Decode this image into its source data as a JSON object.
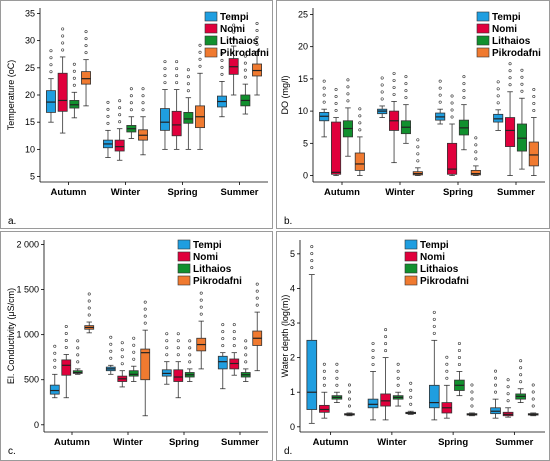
{
  "legend": [
    "Tempi",
    "Nomi",
    "Lithaios",
    "Pikrodafni"
  ],
  "colors": [
    "#1f9ee0",
    "#e0003c",
    "#11902e",
    "#f07a30"
  ],
  "chart_data": [
    {
      "type": "box",
      "panel_label": "a.",
      "ylabel": "Temperature (oC)",
      "categories": [
        "Autumn",
        "Winter",
        "Spring",
        "Summer"
      ],
      "ylim": [
        4,
        36
      ],
      "yticks": [
        "5",
        "10",
        "15",
        "20",
        "25",
        "30",
        "35"
      ],
      "ytick_values": [
        5,
        10,
        15,
        20,
        25,
        30,
        35
      ],
      "series": [
        {
          "name": "Tempi",
          "boxes": [
            {
              "min": 15,
              "q1": 16.8,
              "median": 18.7,
              "q3": 20.8,
              "max": 23
            },
            {
              "min": 8.5,
              "q1": 10.3,
              "median": 11,
              "q3": 11.7,
              "max": 13.5
            },
            {
              "min": 10,
              "q1": 13.5,
              "median": 15,
              "q3": 17.5,
              "max": 21
            },
            {
              "min": 16,
              "q1": 17.8,
              "median": 18.8,
              "q3": 19.8,
              "max": 22.5
            }
          ]
        },
        {
          "name": "Nomi",
          "boxes": [
            {
              "min": 13,
              "q1": 17,
              "median": 19,
              "q3": 24,
              "max": 27
            },
            {
              "min": 8,
              "q1": 9.7,
              "median": 10.5,
              "q3": 11.7,
              "max": 13.8
            },
            {
              "min": 10,
              "q1": 12.5,
              "median": 14.5,
              "q3": 17,
              "max": 21
            },
            {
              "min": 20,
              "q1": 23.8,
              "median": 25.2,
              "q3": 26.7,
              "max": 29
            }
          ]
        },
        {
          "name": "Lithaios",
          "boxes": [
            {
              "min": 15.8,
              "q1": 17.6,
              "median": 18.2,
              "q3": 19,
              "max": 20.5
            },
            {
              "min": 12,
              "q1": 13.2,
              "median": 13.8,
              "q3": 14.4,
              "max": 16
            },
            {
              "min": 10,
              "q1": 14.8,
              "median": 15.6,
              "q3": 16.8,
              "max": 19.5
            },
            {
              "min": 16.5,
              "q1": 18,
              "median": 19,
              "q3": 20,
              "max": 22
            }
          ]
        },
        {
          "name": "Pikrodafni",
          "boxes": [
            {
              "min": 18,
              "q1": 22,
              "median": 23,
              "q3": 24.3,
              "max": 26.5
            },
            {
              "min": 9,
              "q1": 11.7,
              "median": 12.6,
              "q3": 13.6,
              "max": 16
            },
            {
              "min": 10,
              "q1": 14,
              "median": 16,
              "q3": 18,
              "max": 24
            },
            {
              "min": 20,
              "q1": 23.5,
              "median": 24.5,
              "q3": 25.7,
              "max": 28
            }
          ]
        }
      ]
    },
    {
      "type": "box",
      "panel_label": "b.",
      "ylabel": "DO (mg/l)",
      "categories": [
        "Autumn",
        "Winter",
        "Spring",
        "Summer"
      ],
      "ylim": [
        -1,
        26
      ],
      "yticks": [
        "0",
        "5",
        "10",
        "15",
        "20",
        "25"
      ],
      "ytick_values": [
        0,
        5,
        10,
        15,
        20,
        25
      ],
      "series": [
        {
          "name": "Tempi",
          "boxes": [
            {
              "min": 6,
              "q1": 8.5,
              "median": 9.2,
              "q3": 9.8,
              "max": 10.3
            },
            {
              "min": 9,
              "q1": 9.6,
              "median": 10,
              "q3": 10.3,
              "max": 10.8
            },
            {
              "min": 8,
              "q1": 8.6,
              "median": 9.1,
              "q3": 9.7,
              "max": 10.3
            },
            {
              "min": 7,
              "q1": 8.3,
              "median": 8.8,
              "q3": 9.5,
              "max": 10.2
            }
          ]
        },
        {
          "name": "Nomi",
          "boxes": [
            {
              "min": 0,
              "q1": 0.2,
              "median": 0.5,
              "q3": 8.3,
              "max": 9
            },
            {
              "min": 2,
              "q1": 7,
              "median": 8.5,
              "q3": 10,
              "max": 11.5
            },
            {
              "min": 0,
              "q1": 0.2,
              "median": 1,
              "q3": 5,
              "max": 8
            },
            {
              "min": 0,
              "q1": 4.5,
              "median": 7,
              "q3": 9,
              "max": 13
            }
          ]
        },
        {
          "name": "Lithaios",
          "boxes": [
            {
              "min": 3,
              "q1": 6,
              "median": 7.3,
              "q3": 8.5,
              "max": 10.5
            },
            {
              "min": 5,
              "q1": 6.5,
              "median": 7.5,
              "q3": 8.5,
              "max": 11
            },
            {
              "min": 4,
              "q1": 6.3,
              "median": 7.4,
              "q3": 8.6,
              "max": 11
            },
            {
              "min": 1,
              "q1": 3.8,
              "median": 5.8,
              "q3": 8,
              "max": 12
            }
          ]
        },
        {
          "name": "Pikrodafni",
          "boxes": [
            {
              "min": 0,
              "q1": 0.8,
              "median": 1.8,
              "q3": 3.5,
              "max": 6
            },
            {
              "min": 0,
              "q1": 0.1,
              "median": 0.3,
              "q3": 0.6,
              "max": 1.2
            },
            {
              "min": 0,
              "q1": 0.1,
              "median": 0.3,
              "q3": 0.8,
              "max": 1.5
            },
            {
              "min": 0,
              "q1": 1.5,
              "median": 3.2,
              "q3": 5.2,
              "max": 9
            }
          ]
        }
      ]
    },
    {
      "type": "box",
      "panel_label": "c.",
      "ylabel": "El. Conductivity (μS/cm)",
      "categories": [
        "Autumn",
        "Winter",
        "Spring",
        "Summer"
      ],
      "ylim": [
        -80,
        2050
      ],
      "yticks": [
        "0",
        "500",
        "1 000",
        "1 500",
        "2 000"
      ],
      "ytick_values": [
        0,
        500,
        1000,
        1500,
        2000
      ],
      "series": [
        {
          "name": "Tempi",
          "boxes": [
            {
              "min": 300,
              "q1": 340,
              "median": 380,
              "q3": 440,
              "max": 560
            },
            {
              "min": 560,
              "q1": 600,
              "median": 620,
              "q3": 640,
              "max": 660
            },
            {
              "min": 450,
              "q1": 540,
              "median": 570,
              "q3": 610,
              "max": 700
            },
            {
              "min": 400,
              "q1": 620,
              "median": 700,
              "q3": 760,
              "max": 800
            }
          ]
        },
        {
          "name": "Nomi",
          "boxes": [
            {
              "min": 300,
              "q1": 550,
              "median": 660,
              "q3": 720,
              "max": 780
            },
            {
              "min": 420,
              "q1": 480,
              "median": 510,
              "q3": 540,
              "max": 600
            },
            {
              "min": 300,
              "q1": 480,
              "median": 530,
              "q3": 610,
              "max": 700
            },
            {
              "min": 550,
              "q1": 620,
              "median": 680,
              "q3": 730,
              "max": 800
            }
          ]
        },
        {
          "name": "Lithaios",
          "boxes": [
            {
              "min": 560,
              "q1": 570,
              "median": 580,
              "q3": 600,
              "max": 620
            },
            {
              "min": 480,
              "q1": 540,
              "median": 560,
              "q3": 600,
              "max": 650
            },
            {
              "min": 480,
              "q1": 530,
              "median": 555,
              "q3": 580,
              "max": 620
            },
            {
              "min": 480,
              "q1": 530,
              "median": 555,
              "q3": 580,
              "max": 620
            }
          ]
        },
        {
          "name": "Pikrodafni",
          "boxes": [
            {
              "min": 1020,
              "q1": 1060,
              "median": 1080,
              "q3": 1100,
              "max": 1140
            },
            {
              "min": 100,
              "q1": 500,
              "median": 800,
              "q3": 840,
              "max": 1050
            },
            {
              "min": 620,
              "q1": 820,
              "median": 890,
              "q3": 960,
              "max": 1150
            },
            {
              "min": 600,
              "q1": 880,
              "median": 960,
              "q3": 1040,
              "max": 1250
            }
          ]
        }
      ]
    },
    {
      "type": "box",
      "panel_label": "d.",
      "ylabel": "Water depth (log(m))",
      "categories": [
        "Autumn",
        "Winter",
        "Spring",
        "Summer"
      ],
      "ylim": [
        -0.15,
        5.4
      ],
      "yticks": [
        "0",
        "1",
        "2",
        "3",
        "4",
        "5"
      ],
      "ytick_values": [
        0,
        1,
        2,
        3,
        4,
        5
      ],
      "series": [
        {
          "name": "Tempi",
          "boxes": [
            {
              "min": 0.1,
              "q1": 0.5,
              "median": 1.0,
              "q3": 2.5,
              "max": 4.4
            },
            {
              "min": 0.2,
              "q1": 0.55,
              "median": 0.65,
              "q3": 0.8,
              "max": 1.6
            },
            {
              "min": 0.2,
              "q1": 0.55,
              "median": 0.7,
              "q3": 1.2,
              "max": 2.5
            },
            {
              "min": 0.25,
              "q1": 0.38,
              "median": 0.45,
              "q3": 0.55,
              "max": 0.8
            }
          ]
        },
        {
          "name": "Nomi",
          "boxes": [
            {
              "min": 0.25,
              "q1": 0.42,
              "median": 0.5,
              "q3": 0.62,
              "max": 1.0
            },
            {
              "min": 0.2,
              "q1": 0.6,
              "median": 0.75,
              "q3": 0.95,
              "max": 2.0
            },
            {
              "min": 0.25,
              "q1": 0.4,
              "median": 0.55,
              "q3": 0.7,
              "max": 1.2
            },
            {
              "min": 0.28,
              "q1": 0.32,
              "median": 0.36,
              "q3": 0.42,
              "max": 0.55
            }
          ]
        },
        {
          "name": "Lithaios",
          "boxes": [
            {
              "min": 0.7,
              "q1": 0.8,
              "median": 0.85,
              "q3": 0.9,
              "max": 1.0
            },
            {
              "min": 0.6,
              "q1": 0.8,
              "median": 0.85,
              "q3": 0.9,
              "max": 1.0
            },
            {
              "min": 0.9,
              "q1": 1.05,
              "median": 1.2,
              "q3": 1.35,
              "max": 1.6
            },
            {
              "min": 0.7,
              "q1": 0.8,
              "median": 0.88,
              "q3": 0.95,
              "max": 1.1
            }
          ]
        },
        {
          "name": "Pikrodafni",
          "boxes": [
            {
              "min": 0.32,
              "q1": 0.34,
              "median": 0.36,
              "q3": 0.38,
              "max": 0.4
            },
            {
              "min": 0.36,
              "q1": 0.38,
              "median": 0.4,
              "q3": 0.42,
              "max": 0.45
            },
            {
              "min": 0.32,
              "q1": 0.34,
              "median": 0.36,
              "q3": 0.38,
              "max": 0.4
            },
            {
              "min": 0.32,
              "q1": 0.34,
              "median": 0.36,
              "q3": 0.38,
              "max": 0.4
            }
          ]
        }
      ]
    }
  ]
}
